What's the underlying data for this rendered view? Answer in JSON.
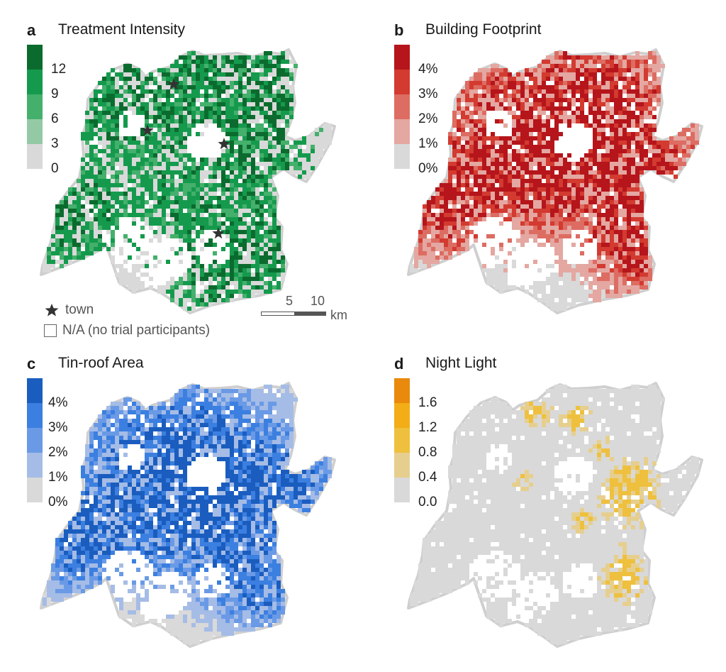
{
  "panels": [
    {
      "letter": "a",
      "title": "Treatment Intensity",
      "ticks": [
        "12",
        "9",
        "6",
        "3",
        "0"
      ],
      "colors": [
        "#0b6b2e",
        "#159a4d",
        "#44b06c",
        "#94c9a6",
        "#d9d9d9"
      ],
      "seed": 11,
      "density": 0.62,
      "mode": "green"
    },
    {
      "letter": "b",
      "title": "Building Footprint",
      "ticks": [
        "4%",
        "3%",
        "2%",
        "1%",
        "0%"
      ],
      "colors": [
        "#b5151b",
        "#d33a30",
        "#dd6c62",
        "#e4a7a1",
        "#d9d9d9"
      ],
      "seed": 23,
      "density": 0.78,
      "mode": "red"
    },
    {
      "letter": "c",
      "title": "Tin-roof Area",
      "ticks": [
        "4%",
        "3%",
        "2%",
        "1%",
        "0%"
      ],
      "colors": [
        "#1a5dbf",
        "#3b7fe0",
        "#6a9ae6",
        "#a5bce6",
        "#d9d9d9"
      ],
      "seed": 37,
      "density": 0.74,
      "mode": "blue"
    },
    {
      "letter": "d",
      "title": "Night Light",
      "ticks": [
        "1.6",
        "1.2",
        "0.8",
        "0.4",
        "0.0"
      ],
      "colors": [
        "#e98a0c",
        "#f2ad17",
        "#eec03e",
        "#e6cf8e",
        "#d9d9d9"
      ],
      "seed": 51,
      "density": 0.88,
      "mode": "yellow"
    }
  ],
  "legend": {
    "town_label": "town",
    "na_label": "N/A (no trial participants)"
  },
  "scalebar": {
    "label_5": "5",
    "label_10": "10",
    "unit": "km"
  }
}
